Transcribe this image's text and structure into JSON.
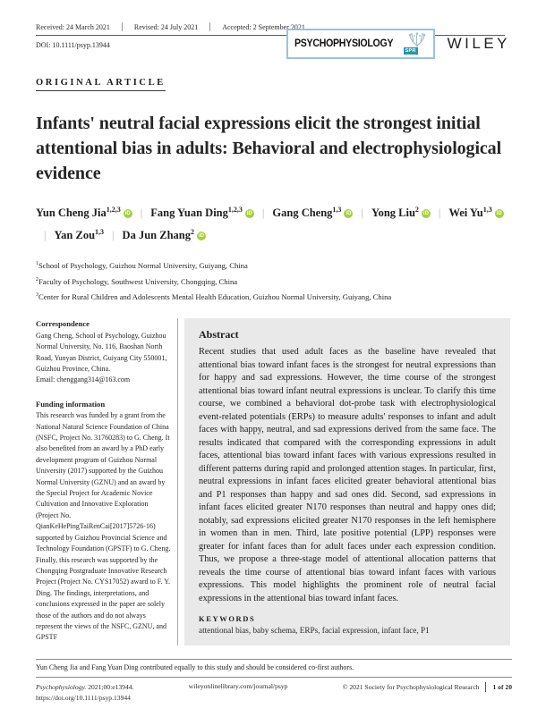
{
  "header": {
    "received": "Received: 24 March 2021",
    "revised": "Revised: 24 July 2021",
    "accepted": "Accepted: 2 September 2021",
    "doi": "DOI: 10.1111/psyp.13944",
    "article_type": "ORIGINAL ARTICLE",
    "journal_logo": "PSYCHOPHYSIOLOGY",
    "spr_badge": "SPR",
    "publisher": "WILEY"
  },
  "title": "Infants' neutral facial expressions elicit the strongest initial attentional bias in adults: Behavioral and electrophysiological evidence",
  "authors": [
    {
      "name": "Yun Cheng Jia",
      "sup": "1,2,3",
      "orcid": true
    },
    {
      "name": "Fang Yuan Ding",
      "sup": "1,2,3",
      "orcid": true
    },
    {
      "name": "Gang Cheng",
      "sup": "1,3",
      "orcid": true
    },
    {
      "name": "Yong Liu",
      "sup": "2",
      "orcid": true
    },
    {
      "name": "Wei Yu",
      "sup": "1,3",
      "orcid": true
    },
    {
      "name": "Yan Zou",
      "sup": "1,3",
      "orcid": false
    },
    {
      "name": "Da Jun Zhang",
      "sup": "2",
      "orcid": true
    }
  ],
  "affiliations": [
    {
      "sup": "1",
      "text": "School of Psychology, Guizhou Normal University, Guiyang, China"
    },
    {
      "sup": "2",
      "text": "Faculty of Psychology, Southwest University, Chongqing, China"
    },
    {
      "sup": "3",
      "text": "Center for Rural Children and Adolescents Mental Health Education, Guizhou Normal University, Guiyang, China"
    }
  ],
  "sidebar": {
    "correspondence_heading": "Correspondence",
    "correspondence_text": "Gang Cheng, School of Psychology, Guizhou Normal University, No. 116, Baoshan North Road, Yunyan District, Guiyang City 550001, Guizhou Province, China.",
    "correspondence_email": "Email: chenggang314@163.com",
    "funding_heading": "Funding information",
    "funding_text": "This research was funded by a grant from the National Natural Science Foundation of China (NSFC, Project No. 31760283) to G. Cheng. It also benefited from an award by a PhD early development program of Guizhou Normal University (2017) supported by the Guizhou Normal University (GZNU) and an award by the Special Project for Academic Novice Cultivation and Innovative Exploration (Project No. QianKeHePingTaiRenCai[2017]5726-16) supported by Guizhou Provincial Science and Technology Foundation (GPSTF) to G. Cheng. Finally, this research was supported by the Chongqing Postgraduate Innovative Research Project (Project No. CYS17052) award to F. Y. Ding. The findings, interpretations, and conclusions expressed in the paper are solely those of the authors and do not always represent the views of the NSFC, GZNU, and GPSTF"
  },
  "abstract": {
    "heading": "Abstract",
    "text": "Recent studies that used adult faces as the baseline have revealed that attentional bias toward infant faces is the strongest for neutral expressions than for happy and sad expressions. However, the time course of the strongest attentional bias toward infant neutral expressions is unclear. To clarify this time course, we combined a behavioral dot-probe task with electrophysiological event-related potentials (ERPs) to measure adults' responses to infant and adult faces with happy, neutral, and sad expressions derived from the same face. The results indicated that compared with the corresponding expressions in adult faces, attentional bias toward infant faces with various expressions resulted in different patterns during rapid and prolonged attention stages. In particular, first, neutral expressions in infant faces elicited greater behavioral attentional bias and P1 responses than happy and sad ones did. Second, sad expressions in infant faces elicited greater N170 responses than neutral and happy ones did; notably, sad expressions elicited greater N170 responses in the left hemisphere in women than in men. Third, late positive potential (LPP) responses were greater for infant faces than for adult faces under each expression condition. Thus, we propose a three-stage model of attentional allocation patterns that reveals the time course of attentional bias toward infant faces with various expressions. This model highlights the prominent role of neutral facial expressions in the attentional bias toward infant faces.",
    "keywords_heading": "KEYWORDS",
    "keywords": "attentional bias, baby schema, ERPs, facial expression, infant face, P1"
  },
  "footer": {
    "co_first_note": "Yun Cheng Jia and Fang Yuan Ding contributed equally to this study and should be considered co-first authors.",
    "citation_journal": "Psychophysiology.",
    "citation_rest": " 2021;00:e13944.",
    "doi_url": "https://doi.org/10.1111/psyp.13944",
    "site": "wileyonlinelibrary.com/journal/psyp",
    "copyright": "© 2021 Society for Psychophysiological Research",
    "page_info": "1 of 20"
  },
  "colors": {
    "orcid_green": "#A6CE39",
    "abstract_bg": "#e9e9e9",
    "logo_border": "#9cc2dc",
    "spr_teal": "#2496ae"
  }
}
